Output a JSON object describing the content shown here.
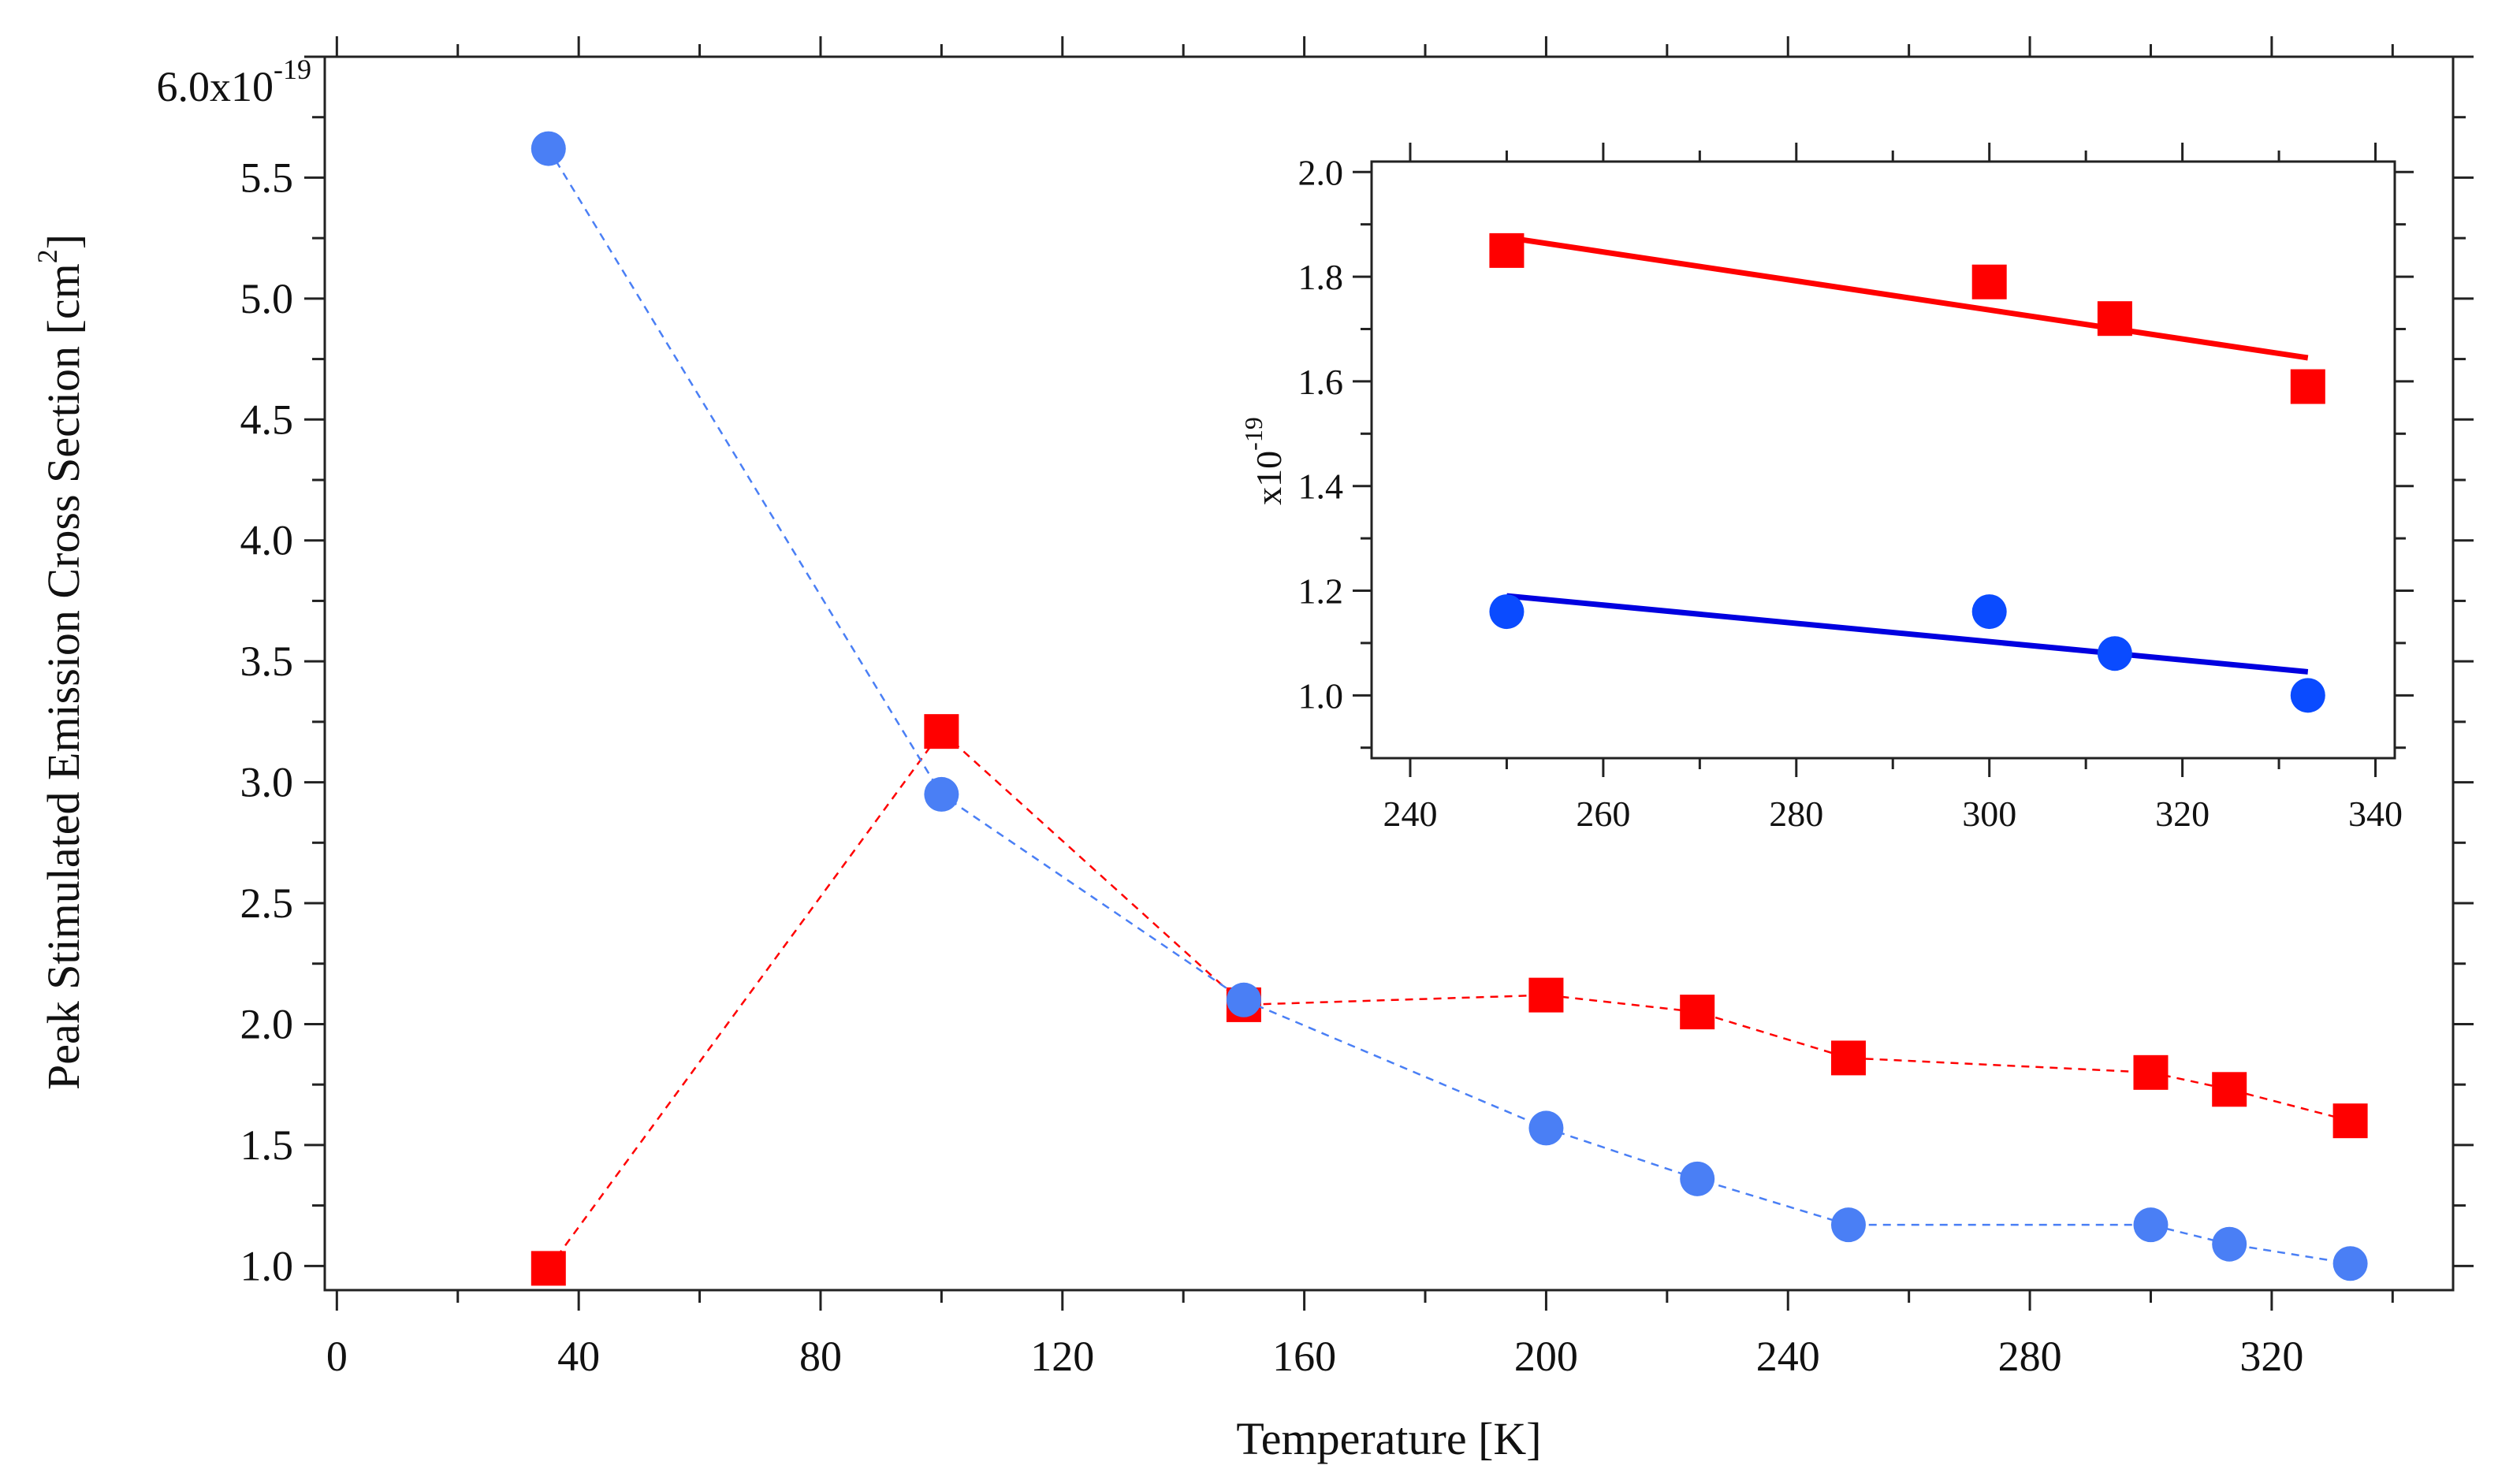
{
  "chart_data": [
    {
      "name": "main",
      "type": "line",
      "title": "",
      "xlabel": "Temperature [K]",
      "ylabel": {
        "text": "Peak Stimulated Emission Cross Section [cm",
        "sup": "2",
        "close": "]"
      },
      "xlim": [
        -2,
        350
      ],
      "ylim": [
        0.9,
        6.0
      ],
      "x_ticks": [
        0,
        40,
        80,
        120,
        160,
        200,
        240,
        280,
        320
      ],
      "x_tick_labels": [
        "0",
        "40",
        "80",
        "120",
        "160",
        "200",
        "240",
        "280",
        "320"
      ],
      "y_ticks": [
        1.0,
        1.5,
        2.0,
        2.5,
        3.0,
        3.5,
        4.0,
        4.5,
        5.0,
        5.5
      ],
      "y_tick_labels": [
        "1.0",
        "1.5",
        "2.0",
        "2.5",
        "3.0",
        "3.5",
        "4.0",
        "4.5",
        "5.0",
        "5.5"
      ],
      "y_top_label": {
        "base": "6.0x10",
        "exp": "-19",
        "value": 6.0
      },
      "grid": false,
      "series": [
        {
          "name": "red squares",
          "color": "#ff0000",
          "marker": "square",
          "line_style": "dashed",
          "x": [
            35,
            100,
            150,
            200,
            225,
            250,
            300,
            313,
            333
          ],
          "y": [
            0.99,
            3.21,
            2.08,
            2.12,
            2.05,
            1.86,
            1.8,
            1.73,
            1.6
          ]
        },
        {
          "name": "blue circles",
          "color": "#4a7ff5",
          "marker": "circle",
          "line_style": "dashed",
          "x": [
            35,
            100,
            150,
            200,
            225,
            250,
            300,
            313,
            333
          ],
          "y": [
            5.62,
            2.95,
            2.1,
            1.57,
            1.36,
            1.17,
            1.17,
            1.09,
            1.01
          ]
        }
      ]
    },
    {
      "name": "inset",
      "type": "scatter",
      "title": "",
      "xlabel": "",
      "ylabel": {
        "text": "x10",
        "sup": "-19"
      },
      "xlim": [
        236,
        342
      ],
      "ylim": [
        0.88,
        2.02
      ],
      "x_ticks": [
        240,
        260,
        280,
        300,
        320,
        340
      ],
      "x_tick_labels": [
        "240",
        "260",
        "280",
        "300",
        "320",
        "340"
      ],
      "y_ticks": [
        1.0,
        1.2,
        1.4,
        1.6,
        1.8,
        2.0
      ],
      "y_tick_labels": [
        "1.0",
        "1.2",
        "1.4",
        "1.6",
        "1.8",
        "2.0"
      ],
      "grid": false,
      "series": [
        {
          "name": "red squares",
          "color": "#ff0000",
          "marker": "square",
          "x": [
            250,
            300,
            313,
            333
          ],
          "y": [
            1.85,
            1.79,
            1.72,
            1.59
          ],
          "fit": {
            "x": [
              250,
              333
            ],
            "y": [
              1.875,
              1.645
            ]
          }
        },
        {
          "name": "blue circles",
          "color": "#0000e0",
          "marker_color": "#0a4bff",
          "marker": "circle",
          "x": [
            250,
            300,
            313,
            333
          ],
          "y": [
            1.16,
            1.16,
            1.08,
            1.0
          ],
          "fit": {
            "x": [
              250,
              333
            ],
            "y": [
              1.19,
              1.045
            ]
          }
        }
      ]
    }
  ]
}
